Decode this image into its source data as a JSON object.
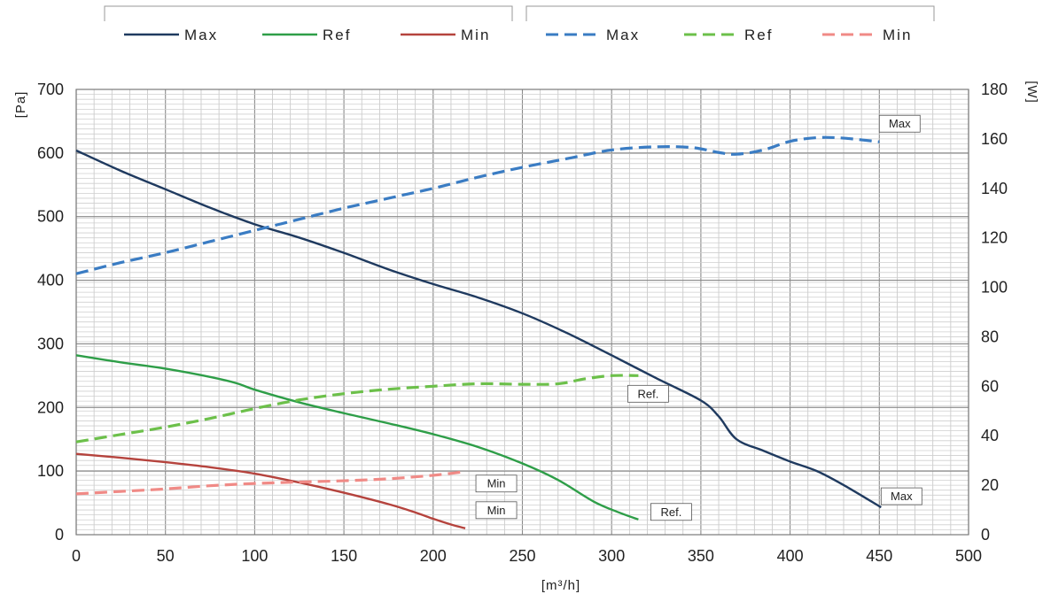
{
  "chart_data": {
    "type": "line",
    "xlabel": "[m³/h]",
    "ylabel_left": "[Pa]",
    "ylabel_right": "[W]",
    "xlim": [
      0,
      500
    ],
    "ylim_left": [
      0,
      700
    ],
    "ylim_right": [
      0,
      180
    ],
    "x_ticks": [
      0,
      50,
      100,
      150,
      200,
      250,
      300,
      350,
      400,
      450,
      500
    ],
    "y_left_ticks": [
      0,
      100,
      200,
      300,
      400,
      500,
      600,
      700
    ],
    "y_right_ticks": [
      0,
      20,
      40,
      60,
      80,
      100,
      120,
      140,
      160,
      180
    ],
    "grid": true,
    "legend_position": "top",
    "legend_groups": [
      {
        "entries": [
          "Max",
          "Ref",
          "Min"
        ]
      },
      {
        "entries": [
          "Max",
          "Ref",
          "Min"
        ]
      }
    ],
    "series": [
      {
        "name": "Max",
        "axis": "left",
        "dash": "solid",
        "color": "#1f3a5f",
        "callout": "Max",
        "points": [
          [
            0,
            604
          ],
          [
            25,
            572
          ],
          [
            50,
            543
          ],
          [
            75,
            514
          ],
          [
            100,
            488
          ],
          [
            125,
            467
          ],
          [
            150,
            443
          ],
          [
            175,
            417
          ],
          [
            200,
            394
          ],
          [
            225,
            373
          ],
          [
            250,
            348
          ],
          [
            275,
            317
          ],
          [
            300,
            282
          ],
          [
            325,
            246
          ],
          [
            350,
            211
          ],
          [
            360,
            186
          ],
          [
            370,
            150
          ],
          [
            385,
            132
          ],
          [
            400,
            115
          ],
          [
            415,
            100
          ],
          [
            430,
            78
          ],
          [
            451,
            43
          ]
        ]
      },
      {
        "name": "Ref",
        "axis": "left",
        "dash": "solid",
        "color": "#2e9e48",
        "callout": "Ref.",
        "points": [
          [
            0,
            282
          ],
          [
            25,
            271
          ],
          [
            50,
            261
          ],
          [
            75,
            248
          ],
          [
            90,
            238
          ],
          [
            100,
            228
          ],
          [
            125,
            208
          ],
          [
            150,
            191
          ],
          [
            175,
            175
          ],
          [
            200,
            158
          ],
          [
            225,
            138
          ],
          [
            250,
            112
          ],
          [
            270,
            86
          ],
          [
            290,
            52
          ],
          [
            305,
            34
          ],
          [
            315,
            24
          ]
        ]
      },
      {
        "name": "Min",
        "axis": "left",
        "dash": "solid",
        "color": "#b5433d",
        "callout": "Min",
        "points": [
          [
            0,
            127
          ],
          [
            25,
            121
          ],
          [
            50,
            114
          ],
          [
            75,
            106
          ],
          [
            100,
            96
          ],
          [
            125,
            82
          ],
          [
            150,
            66
          ],
          [
            175,
            48
          ],
          [
            190,
            35
          ],
          [
            200,
            25
          ],
          [
            210,
            16
          ],
          [
            218,
            10
          ]
        ]
      },
      {
        "name": "Max",
        "axis": "right",
        "dash": "dashed",
        "color": "#3a7cc3",
        "callout": "Max",
        "points": [
          [
            0,
            105.5
          ],
          [
            25,
            110
          ],
          [
            50,
            114
          ],
          [
            75,
            118.5
          ],
          [
            100,
            123
          ],
          [
            125,
            127.5
          ],
          [
            150,
            132
          ],
          [
            175,
            136
          ],
          [
            200,
            140
          ],
          [
            225,
            144.5
          ],
          [
            250,
            148.5
          ],
          [
            275,
            152
          ],
          [
            300,
            155.5
          ],
          [
            325,
            156.8
          ],
          [
            345,
            156.5
          ],
          [
            360,
            154.5
          ],
          [
            370,
            153.8
          ],
          [
            385,
            155.5
          ],
          [
            400,
            159
          ],
          [
            415,
            160.5
          ],
          [
            430,
            160.3
          ],
          [
            450,
            158.8
          ]
        ]
      },
      {
        "name": "Ref",
        "axis": "right",
        "dash": "dashed",
        "color": "#6cc04a",
        "callout": "Ref.",
        "points": [
          [
            0,
            37.5
          ],
          [
            25,
            40.5
          ],
          [
            50,
            43.5
          ],
          [
            75,
            47
          ],
          [
            100,
            51
          ],
          [
            125,
            54.5
          ],
          [
            150,
            57
          ],
          [
            175,
            58.8
          ],
          [
            200,
            60
          ],
          [
            225,
            61
          ],
          [
            250,
            60.8
          ],
          [
            270,
            61
          ],
          [
            285,
            63
          ],
          [
            300,
            64.3
          ],
          [
            315,
            64.3
          ]
        ]
      },
      {
        "name": "Min",
        "axis": "right",
        "dash": "dashed",
        "color": "#f08a86",
        "callout": "Min",
        "points": [
          [
            0,
            16.5
          ],
          [
            25,
            17.5
          ],
          [
            50,
            18.5
          ],
          [
            75,
            19.8
          ],
          [
            100,
            20.7
          ],
          [
            125,
            21.3
          ],
          [
            150,
            21.8
          ],
          [
            175,
            22.6
          ],
          [
            200,
            24
          ],
          [
            218,
            25.5
          ]
        ]
      }
    ]
  }
}
